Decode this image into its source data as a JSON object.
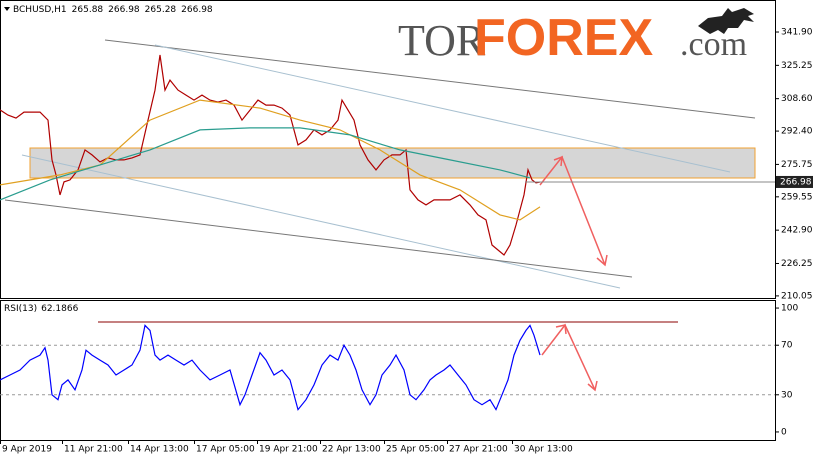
{
  "watermark": {
    "parts": [
      "TOR",
      "FOREX",
      ".com"
    ]
  },
  "chart_data": [
    {
      "type": "line",
      "symbol": "BCHUSD,H1",
      "ohlc": [
        265.88,
        266.98,
        265.28,
        266.98
      ],
      "last_price": 266.98,
      "xlim": [
        0,
        775
      ],
      "ylim": [
        209,
        357.9
      ],
      "yticks": [
        {
          "value": 341.9,
          "label": "341.90"
        },
        325.25,
        {
          "value": 308.6,
          "label": "308.60"
        },
        {
          "value": 292.4,
          "label": "292.40"
        },
        275.75,
        259.55,
        {
          "value": 242.9,
          "label": "242.90"
        },
        226.25,
        210.05
      ],
      "series": [
        {
          "color": "#b00000",
          "x": [
            0,
            8,
            16,
            24,
            32,
            40,
            48,
            52,
            56,
            60,
            64,
            70,
            78,
            85,
            92,
            100,
            108,
            116,
            124,
            132,
            140,
            148,
            155,
            160,
            165,
            170,
            178,
            186,
            194,
            202,
            210,
            218,
            226,
            234,
            242,
            250,
            258,
            266,
            274,
            282,
            290,
            298,
            306,
            314,
            322,
            330,
            338,
            342,
            348,
            354,
            360,
            368,
            376,
            384,
            392,
            400,
            406,
            410,
            418,
            426,
            434,
            442,
            450,
            460,
            470,
            478,
            486,
            492,
            498,
            504,
            510,
            516,
            520,
            524,
            528,
            532,
            536,
            540
          ],
          "values": [
            303.0,
            300.4,
            298.9,
            301.9,
            301.9,
            301.9,
            297.9,
            278.0,
            270.5,
            260.5,
            267.0,
            268.0,
            273.0,
            283.0,
            280.5,
            277.0,
            279.0,
            278.0,
            278.0,
            279.0,
            280.5,
            297.9,
            312.9,
            330.4,
            312.9,
            317.9,
            312.9,
            310.4,
            307.9,
            310.4,
            307.9,
            306.9,
            307.9,
            305.4,
            297.9,
            302.9,
            307.9,
            305.4,
            305.4,
            303.9,
            300.4,
            285.5,
            288.0,
            293.0,
            290.5,
            293.0,
            297.9,
            307.9,
            302.9,
            297.9,
            285.5,
            278.0,
            273.0,
            278.0,
            280.5,
            280.5,
            283.0,
            263.0,
            258.0,
            255.5,
            258.0,
            258.0,
            258.0,
            260.5,
            255.5,
            250.5,
            248.0,
            235.5,
            233.0,
            230.5,
            235.5,
            245.5,
            253.0,
            260.5,
            273.0,
            268.0,
            266.5,
            266.98
          ]
        },
        {
          "color": "#e0a020",
          "x": [
            0,
            60,
            100,
            150,
            200,
            260,
            300,
            340,
            380,
            420,
            460,
            500,
            520,
            540
          ],
          "values": [
            265.5,
            270.5,
            275.5,
            297.9,
            307.9,
            303.9,
            297.9,
            293.0,
            283.0,
            270.5,
            263.0,
            250.5,
            248.0,
            254.5
          ]
        },
        {
          "color": "#2a9d8f",
          "x": [
            0,
            50,
            100,
            150,
            200,
            250,
            300,
            350,
            400,
            450,
            500,
            530
          ],
          "values": [
            258.0,
            268.0,
            275.5,
            283.0,
            293.0,
            294.0,
            294.0,
            290.5,
            283.0,
            278.0,
            273.0,
            269.0
          ]
        }
      ]
    },
    {
      "type": "line",
      "indicator": "RSI(13)",
      "indicator_value": 62.1866,
      "xlim": [
        0,
        775
      ],
      "ylim": [
        -6.5,
        106.5
      ],
      "yticks": [
        100,
        70,
        30,
        0
      ],
      "levels": [
        70,
        30
      ],
      "xticks": [
        {
          "value": 0,
          "label": "9 Apr 2019"
        },
        {
          "value": 62,
          "label": "11 Apr 21:00"
        },
        {
          "value": 128,
          "label": "14 Apr 13:00"
        },
        {
          "value": 194,
          "label": "17 Apr 05:00"
        },
        {
          "value": 257,
          "label": "19 Apr 21:00"
        },
        {
          "value": 320,
          "label": "22 Apr 13:00"
        },
        {
          "value": 384,
          "label": "25 Apr 05:00"
        },
        {
          "value": 447,
          "label": "27 Apr 21:00"
        },
        {
          "value": 512,
          "label": "30 Apr 13:00"
        }
      ],
      "series": [
        {
          "color": "#0000ff",
          "x": [
            0,
            10,
            20,
            30,
            40,
            45,
            48,
            52,
            58,
            62,
            68,
            75,
            82,
            86,
            92,
            100,
            108,
            116,
            124,
            132,
            140,
            145,
            150,
            155,
            160,
            168,
            176,
            184,
            192,
            200,
            210,
            220,
            230,
            240,
            245,
            252,
            260,
            266,
            274,
            282,
            290,
            298,
            306,
            314,
            322,
            330,
            338,
            344,
            350,
            356,
            362,
            370,
            376,
            382,
            390,
            396,
            404,
            410,
            416,
            424,
            430,
            436,
            444,
            450,
            458,
            466,
            474,
            482,
            490,
            496,
            502,
            508,
            514,
            520,
            526,
            530,
            534,
            540
          ],
          "values": [
            42,
            46,
            50,
            58,
            62,
            68,
            58,
            30,
            26,
            38,
            42,
            34,
            50,
            66,
            62,
            58,
            54,
            46,
            50,
            54,
            66,
            86,
            82,
            62,
            58,
            62,
            58,
            54,
            58,
            50,
            42,
            46,
            50,
            22,
            30,
            46,
            64,
            58,
            46,
            50,
            42,
            18,
            26,
            38,
            54,
            62,
            58,
            70,
            62,
            50,
            34,
            22,
            30,
            46,
            54,
            62,
            50,
            30,
            26,
            34,
            42,
            46,
            50,
            54,
            46,
            38,
            26,
            22,
            26,
            18,
            30,
            42,
            62,
            74,
            82,
            86,
            78,
            62
          ]
        }
      ]
    }
  ]
}
